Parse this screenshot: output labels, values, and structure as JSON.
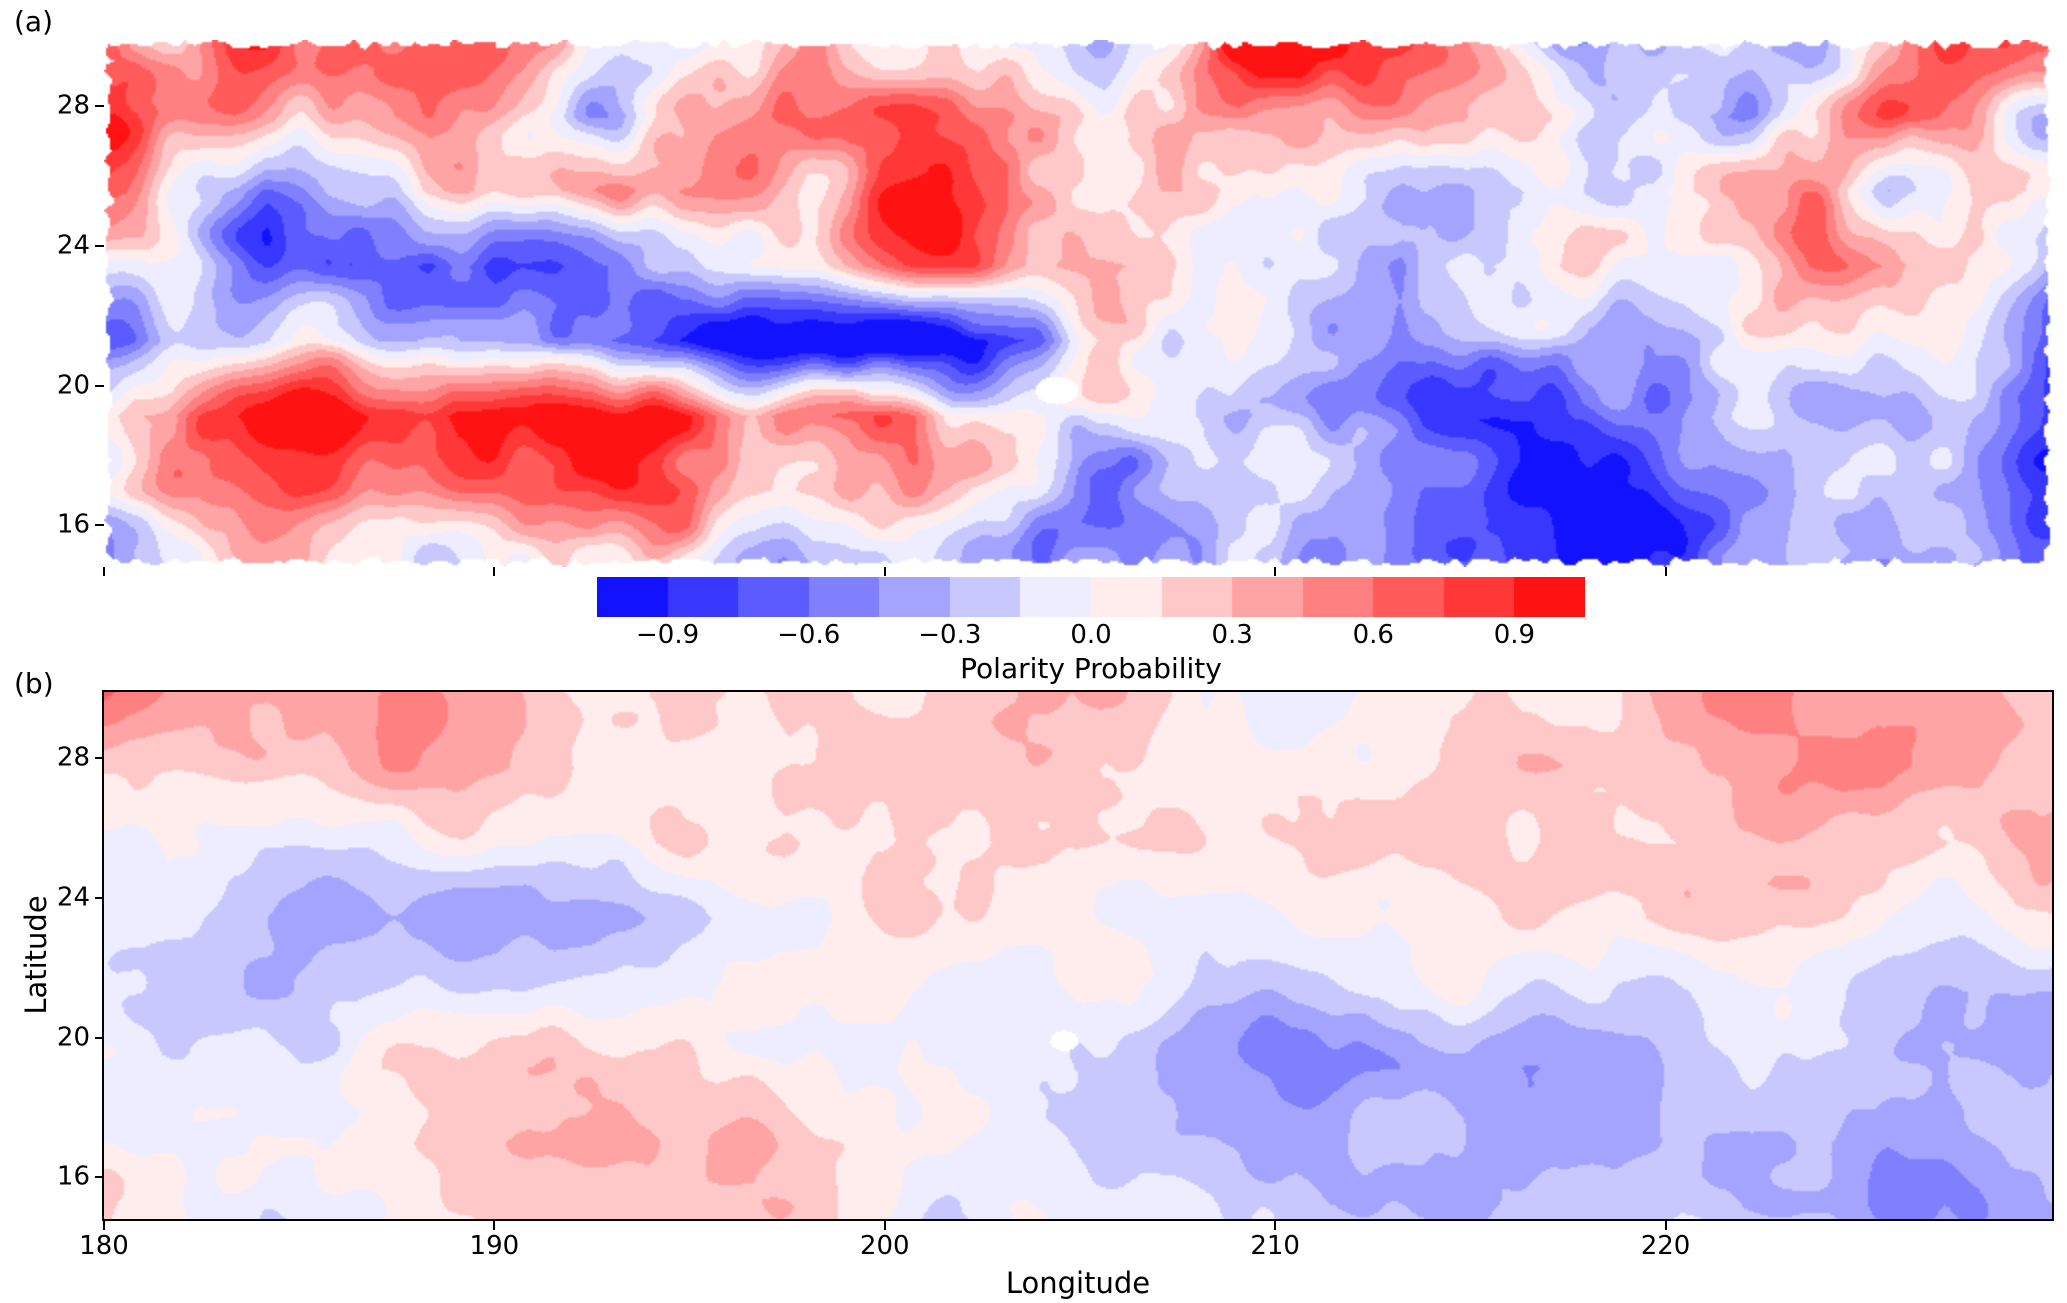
{
  "figure": {
    "panel_a_label": "(a)",
    "panel_b_label": "(b)",
    "colorbar": {
      "label": "Polarity Probability",
      "tick_labels": [
        "−0.9",
        "−0.6",
        "−0.3",
        "0.0",
        "0.3",
        "0.6",
        "0.9"
      ],
      "tick_values": [
        -0.9,
        -0.6,
        -0.3,
        0.0,
        0.3,
        0.6,
        0.9
      ],
      "range": [
        -1.05,
        1.05
      ],
      "n_segments": 14,
      "colormap": "bwr"
    },
    "axes": {
      "xlabel": "Longitude",
      "ylabel": "Latitude",
      "x_tick_labels": [
        "180",
        "190",
        "200",
        "210",
        "220"
      ],
      "x_tick_values": [
        180,
        190,
        200,
        210,
        220
      ],
      "y_tick_labels": [
        "28",
        "24",
        "20",
        "16"
      ],
      "y_tick_values": [
        28,
        24,
        20,
        16
      ]
    }
  },
  "chart_data": [
    {
      "type": "heatmap",
      "panel": "(a)",
      "quantity": "Polarity Probability",
      "colormap": "bwr",
      "x_range": [
        180,
        229.9
      ],
      "y_range": [
        14.8,
        29.9
      ],
      "levels": {
        "min": -1.05,
        "max": 1.05,
        "step": 0.15
      },
      "grid_lon": [
        180,
        184,
        188,
        192,
        196,
        200,
        204,
        208,
        212,
        216,
        220,
        224,
        228
      ],
      "grid_lat_top_to_bottom": [
        29,
        27,
        25,
        23,
        21,
        19,
        17,
        15
      ],
      "values": [
        [
          0.6,
          0.5,
          0.2,
          0.5,
          0.4,
          0.3,
          0.1,
          0.5,
          0.2,
          -0.3,
          0.4,
          -0.2,
          0.3
        ],
        [
          0.8,
          0.3,
          0.6,
          0.1,
          0.6,
          0.5,
          0.4,
          0.4,
          0.1,
          0.4,
          -0.4,
          0.3,
          -0.2
        ],
        [
          0.7,
          -0.3,
          0.5,
          0.6,
          0.4,
          0.5,
          0.2,
          0.5,
          -0.2,
          0.1,
          0.3,
          -0.3,
          0.4
        ],
        [
          0.2,
          -0.4,
          -0.6,
          -0.4,
          0.3,
          0.5,
          0.3,
          0.1,
          -0.4,
          0.3,
          -0.2,
          0.3,
          -0.3
        ],
        [
          -0.2,
          -0.5,
          -0.4,
          -0.7,
          -0.8,
          -0.9,
          -0.6,
          -0.4,
          -0.5,
          -0.3,
          -0.5,
          -0.2,
          -0.4
        ],
        [
          0.4,
          0.6,
          0.8,
          0.9,
          0.95,
          0.8,
          -0.7,
          -0.7,
          -0.5,
          -0.6,
          -0.4,
          -0.6,
          -0.5
        ],
        [
          0.3,
          0.5,
          0.7,
          0.85,
          0.9,
          0.4,
          -0.5,
          -0.6,
          -0.7,
          -0.5,
          -0.7,
          -0.5,
          -0.6
        ],
        [
          -0.2,
          0.3,
          0.2,
          0.4,
          0.2,
          -0.3,
          -0.5,
          -0.7,
          -0.5,
          -0.6,
          -0.5,
          -0.7,
          -0.6
        ]
      ],
      "noise_amplitude": 0.55,
      "ragged_edge": true,
      "masked_island": {
        "lon": 204.4,
        "lat": 19.85,
        "rx": 0.55,
        "ry": 0.4
      }
    },
    {
      "type": "heatmap",
      "panel": "(b)",
      "quantity": "Polarity Probability",
      "colormap": "bwr",
      "x_range": [
        180,
        229.9
      ],
      "y_range": [
        14.8,
        29.9
      ],
      "levels": {
        "min": -1.05,
        "max": 1.05,
        "step": 0.15
      },
      "grid_lon": [
        180,
        184,
        188,
        192,
        196,
        200,
        204,
        208,
        212,
        216,
        220,
        224,
        228
      ],
      "grid_lat_top_to_bottom": [
        29,
        27,
        25,
        23,
        21,
        19,
        17,
        15
      ],
      "values": [
        [
          0.5,
          0.2,
          0.3,
          0.2,
          0.3,
          0.2,
          0.3,
          0.1,
          -0.1,
          0.2,
          0.3,
          0.2,
          0.1
        ],
        [
          0.3,
          0.2,
          0.4,
          0.3,
          0.1,
          0.3,
          0.2,
          0.2,
          0.1,
          0.3,
          0.2,
          0.3,
          0.2
        ],
        [
          0.2,
          0.1,
          0.1,
          0.2,
          0.1,
          0.1,
          0.2,
          0.1,
          0.2,
          0.2,
          0.1,
          0.1,
          0.2
        ],
        [
          0.1,
          -0.1,
          -0.3,
          -0.3,
          -0.1,
          0.1,
          0.1,
          -0.1,
          0.1,
          0.2,
          0.1,
          -0.1,
          0.1
        ],
        [
          0.1,
          -0.1,
          -0.2,
          -0.1,
          0.1,
          0.0,
          -0.1,
          -0.2,
          -0.1,
          0.0,
          -0.1,
          -0.1,
          -0.2
        ],
        [
          0.1,
          0.1,
          0.1,
          0.2,
          0.2,
          0.1,
          -0.2,
          -0.3,
          -0.4,
          -0.3,
          -0.2,
          -0.2,
          -0.1
        ],
        [
          0.0,
          0.1,
          0.2,
          0.3,
          0.2,
          0.1,
          -0.2,
          -0.4,
          -0.3,
          -0.4,
          -0.3,
          -0.3,
          -0.2
        ],
        [
          0.1,
          -0.1,
          0.1,
          0.1,
          0.2,
          0.0,
          -0.1,
          -0.2,
          -0.3,
          -0.3,
          -0.2,
          -0.3,
          -0.3
        ]
      ],
      "noise_amplitude": 0.22,
      "ragged_edge": false,
      "masked_island": {
        "lon": 204.6,
        "lat": 19.9,
        "rx": 0.35,
        "ry": 0.3
      }
    }
  ]
}
